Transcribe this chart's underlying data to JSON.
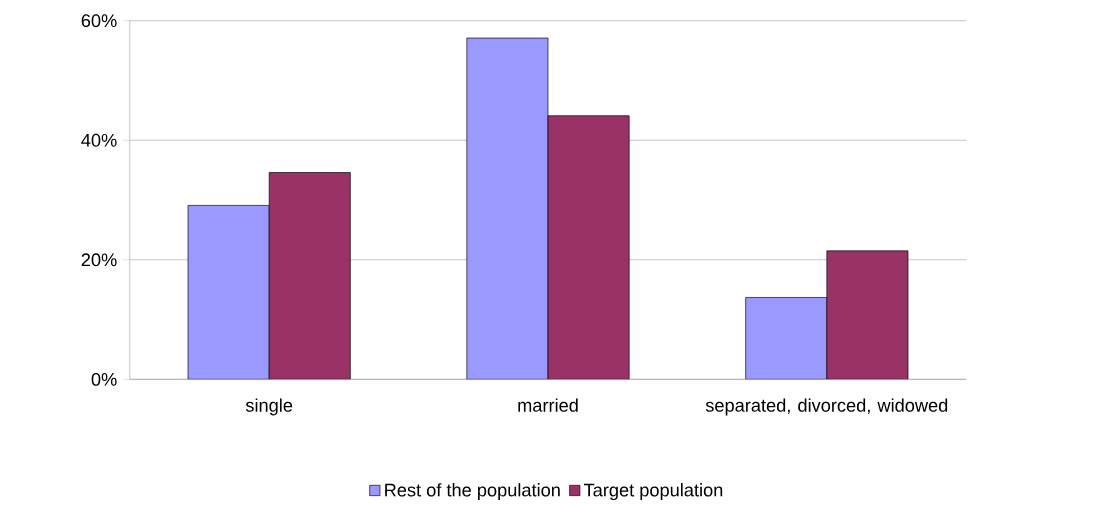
{
  "chart_data": {
    "type": "bar",
    "categories": [
      "single",
      "married",
      "separated, divorced, widowed"
    ],
    "series": [
      {
        "name": "Rest of the population",
        "color": "#9999ff",
        "values": [
          29.1,
          57.1,
          13.7
        ]
      },
      {
        "name": "Target population",
        "color": "#993366",
        "values": [
          34.6,
          44.1,
          21.5
        ]
      }
    ],
    "ylim": [
      0,
      60
    ],
    "yticks": [
      {
        "value": 0,
        "label": "0%"
      },
      {
        "value": 20,
        "label": "20%"
      },
      {
        "value": 40,
        "label": "40%"
      },
      {
        "value": 60,
        "label": "60%"
      }
    ],
    "grid": "y",
    "legend": "bottom"
  }
}
